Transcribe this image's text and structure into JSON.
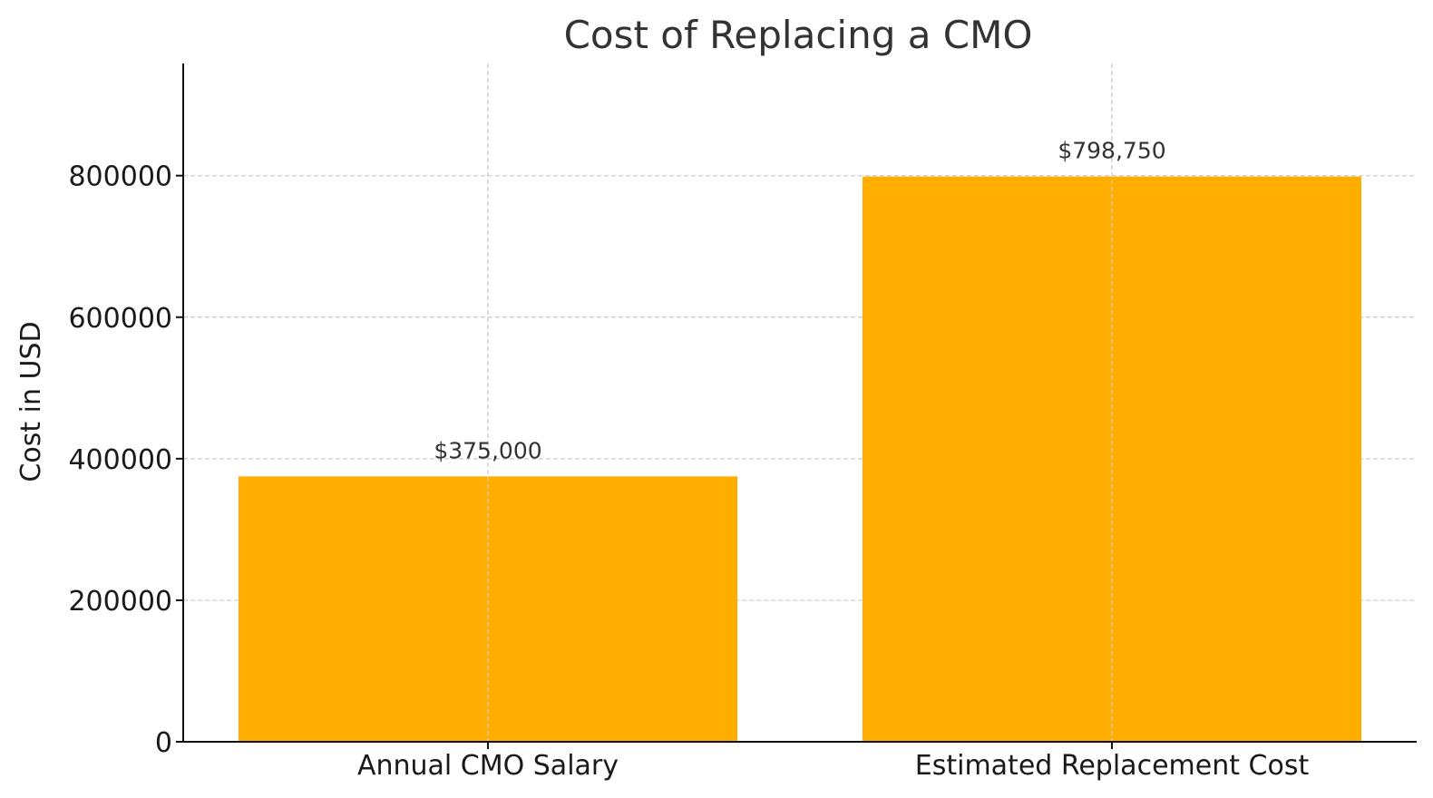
{
  "chart_data": {
    "type": "bar",
    "title": "Cost of Replacing a CMO",
    "xlabel": "",
    "ylabel": "Cost in USD",
    "categories": [
      "Annual CMO Salary",
      "Estimated Replacement Cost"
    ],
    "values": [
      375000,
      798750
    ],
    "value_labels": [
      "$375,000",
      "$798,750"
    ],
    "ylim": [
      0,
      958500
    ],
    "yticks": [
      0,
      200000,
      400000,
      600000,
      800000
    ],
    "ytick_labels": [
      "0",
      "200000",
      "400000",
      "600000",
      "800000"
    ],
    "grid": true,
    "bar_color": "#ffae00"
  }
}
